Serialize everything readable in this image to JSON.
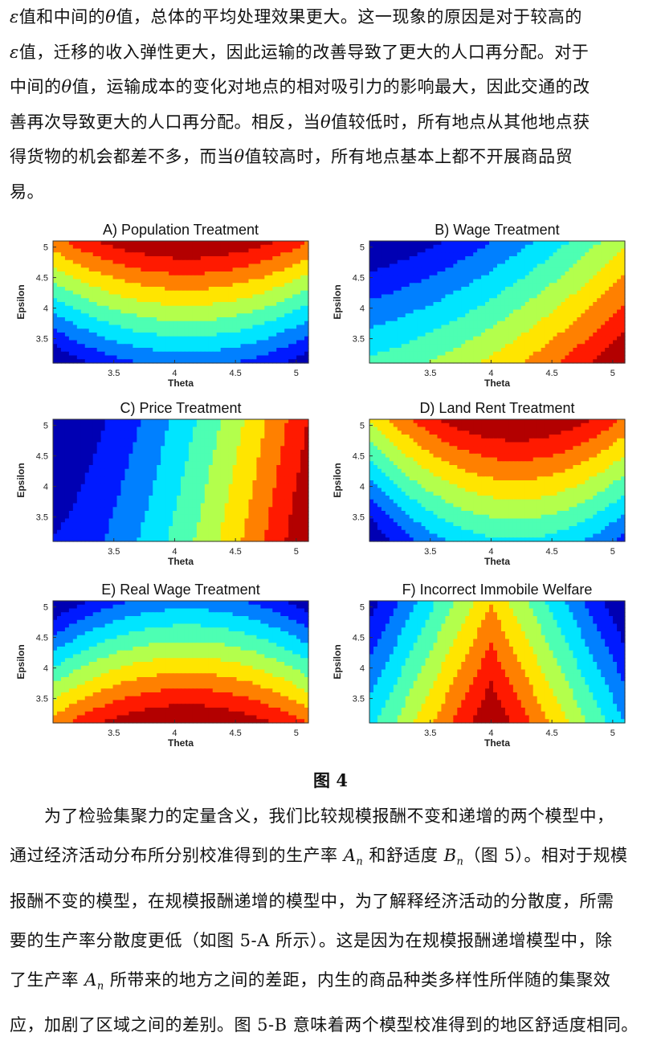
{
  "paragraph_top": {
    "lines": [
      [
        {
          "t": "ε",
          "sym": true
        },
        {
          "t": "值和中间的"
        },
        {
          "t": "θ",
          "sym": true
        },
        {
          "t": "值，总体的平均处理效果更大。这一现象的原因是对于较高的"
        }
      ],
      [
        {
          "t": "ε",
          "sym": true
        },
        {
          "t": "值，迁移的收入弹性更大，因此运输的改善导致了更大的人口再分配。对于"
        }
      ],
      [
        {
          "t": "中间的"
        },
        {
          "t": "θ",
          "sym": true
        },
        {
          "t": "值，运输成本的变化对地点的相对吸引力的影响最大，因此交通的改"
        }
      ],
      [
        {
          "t": "善再次导致更大的人口再分配。相反，当"
        },
        {
          "t": "θ",
          "sym": true
        },
        {
          "t": "值较低时，所有地点从其他地点获"
        }
      ],
      [
        {
          "t": "得货物的机会都差不多，而当"
        },
        {
          "t": "θ",
          "sym": true
        },
        {
          "t": "值较高时，所有地点基本上都不开展商品贸"
        }
      ],
      [
        {
          "t": "易。"
        }
      ]
    ]
  },
  "figure_caption": "图 4",
  "paragraph_bottom": {
    "lines": [
      [
        {
          "t": "　　为了检验集聚力的定量含义，我们比较规模报酬不变和递增的两个模型中，"
        }
      ],
      [
        {
          "t": "通过经济活动分布所分别校准得到的生产率 "
        },
        {
          "t": "A",
          "sym": true,
          "sub": "n"
        },
        {
          "t": " 和舒适度 "
        },
        {
          "t": "B",
          "sym": true,
          "sub": "n"
        },
        {
          "t": "（图 5）。相对于规模"
        }
      ],
      [
        {
          "t": "报酬不变的模型，在规模报酬递增的模型中，为了解释经济活动的分散度，所需"
        }
      ],
      [
        {
          "t": "要的生产率分散度更低（如图 5-A 所示）。这是因为在规模报酬递增模型中，除"
        }
      ],
      [
        {
          "t": "了生产率 "
        },
        {
          "t": "A",
          "sym": true,
          "sub": "n"
        },
        {
          "t": " 所带来的地方之间的差距，内生的商品种类多样性所伴随的集聚效"
        }
      ],
      [
        {
          "t": "应，加剧了区域之间的差别。图 5-B 意味着两个模型校准得到的地区舒适度相同。"
        }
      ]
    ]
  },
  "chart_data": [
    {
      "type": "heatmap",
      "title": "A) Population Treatment",
      "xlabel": "Theta",
      "ylabel": "Epsilon",
      "x_ticks": [
        "3.5",
        "4",
        "4.5",
        "5"
      ],
      "y_ticks": [
        "3.5",
        "4",
        "4.5",
        "5"
      ],
      "xlim": [
        3.0,
        5.1
      ],
      "ylim": [
        3.1,
        5.1
      ],
      "colormap": "jet",
      "levels": 10,
      "pattern": "arch-up: value increases with epsilon, highest near theta≈4.1"
    },
    {
      "type": "heatmap",
      "title": "B) Wage Treatment",
      "xlabel": "Theta",
      "ylabel": "Epsilon",
      "x_ticks": [
        "3.5",
        "4",
        "4.5",
        "5"
      ],
      "y_ticks": [
        "3.5",
        "4",
        "4.5",
        "5"
      ],
      "xlim": [
        3.0,
        5.1
      ],
      "ylim": [
        3.1,
        5.1
      ],
      "colormap": "jet",
      "levels": 10,
      "pattern": "diagonal: low at low theta/high epsilon, high at high theta/low epsilon"
    },
    {
      "type": "heatmap",
      "title": "C) Price Treatment",
      "xlabel": "Theta",
      "ylabel": "Epsilon",
      "x_ticks": [
        "3.5",
        "4",
        "4.5",
        "5"
      ],
      "y_ticks": [
        "3.5",
        "4",
        "4.5",
        "5"
      ],
      "xlim": [
        3.0,
        5.1
      ],
      "ylim": [
        3.1,
        5.1
      ],
      "colormap": "jet",
      "levels": 10,
      "pattern": "increasing with theta, slight decrease with epsilon"
    },
    {
      "type": "heatmap",
      "title": "D) Land Rent Treatment",
      "xlabel": "Theta",
      "ylabel": "Epsilon",
      "x_ticks": [
        "3.5",
        "4",
        "4.5",
        "5"
      ],
      "y_ticks": [
        "3.5",
        "4",
        "4.5",
        "5"
      ],
      "xlim": [
        3.0,
        5.1
      ],
      "ylim": [
        3.1,
        5.1
      ],
      "colormap": "jet",
      "levels": 10,
      "pattern": "arch-up, steep: highest at high epsilon near theta≈4.2"
    },
    {
      "type": "heatmap",
      "title": "E) Real Wage Treatment",
      "xlabel": "Theta",
      "ylabel": "Epsilon",
      "x_ticks": [
        "3.5",
        "4",
        "4.5",
        "5"
      ],
      "y_ticks": [
        "3.5",
        "4",
        "4.5",
        "5"
      ],
      "xlim": [
        3.0,
        5.1
      ],
      "ylim": [
        3.1,
        5.1
      ],
      "colormap": "jet",
      "levels": 10,
      "pattern": "arch-down: highest at low epsilon near theta≈4.1"
    },
    {
      "type": "heatmap",
      "title": "F) Incorrect Immobile Welfare",
      "xlabel": "Theta",
      "ylabel": "Epsilon",
      "x_ticks": [
        "3.5",
        "4",
        "4.5",
        "5"
      ],
      "y_ticks": [
        "3.5",
        "4",
        "4.5",
        "5"
      ],
      "xlim": [
        3.0,
        5.1
      ],
      "ylim": [
        3.1,
        5.1
      ],
      "colormap": "jet",
      "levels": 10,
      "pattern": "peak at theta≈4.0, low epsilon; decreasing away from theta=4"
    }
  ]
}
